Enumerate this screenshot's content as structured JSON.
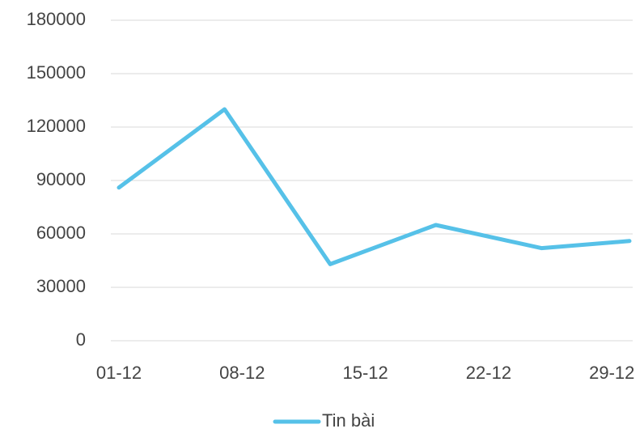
{
  "chart_data": {
    "type": "line",
    "x": [
      1,
      7,
      13,
      19,
      25,
      30
    ],
    "series": [
      {
        "name": "Tin bài",
        "color": "#56c1e8",
        "values": [
          86000,
          130000,
          43000,
          65000,
          52000,
          56000
        ]
      }
    ],
    "xlim": [
      1,
      30
    ],
    "xticks": [
      {
        "value": 1,
        "label": "01-12"
      },
      {
        "value": 8,
        "label": "08-12"
      },
      {
        "value": 15,
        "label": "15-12"
      },
      {
        "value": 22,
        "label": "22-12"
      },
      {
        "value": 29,
        "label": "29-12"
      }
    ],
    "ylim": [
      0,
      180000
    ],
    "yticks": [
      0,
      30000,
      60000,
      90000,
      120000,
      150000,
      180000
    ],
    "grid": true,
    "legend": "bottom"
  }
}
